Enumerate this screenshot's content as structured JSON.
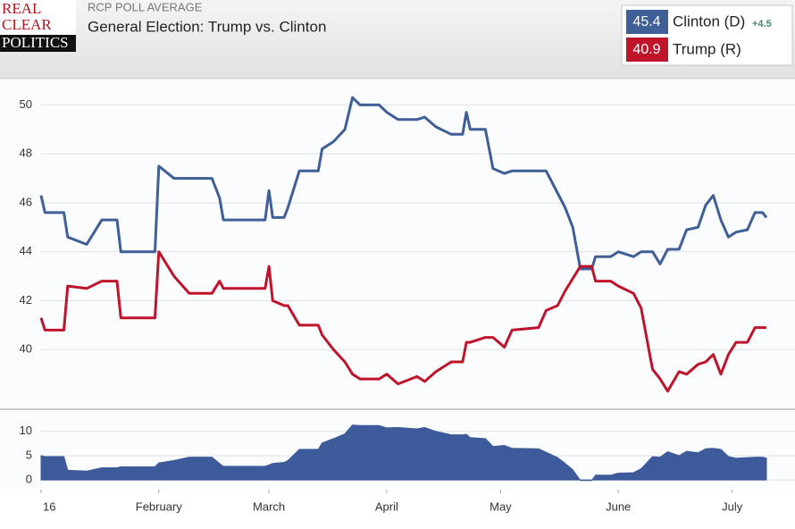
{
  "header": {
    "logo": [
      "REAL",
      "CLEAR",
      "POLITICS"
    ],
    "kicker": "RCP POLL AVERAGE",
    "title": "General Election: Trump vs. Clinton"
  },
  "chart_data": [
    {
      "type": "line",
      "grid": true,
      "x": [
        0,
        1,
        6,
        7,
        12,
        16,
        20,
        21,
        30,
        31,
        35,
        39,
        45,
        47,
        48,
        59,
        60,
        61,
        64,
        65,
        68,
        73,
        74,
        77,
        80,
        82,
        84,
        89,
        91,
        94,
        99,
        101,
        104,
        108,
        111,
        112,
        113,
        117,
        119,
        122,
        124,
        131,
        133,
        136,
        138,
        140,
        142,
        145,
        146,
        150,
        152,
        156,
        158,
        161,
        163,
        165,
        168,
        170,
        173,
        175,
        177,
        179,
        181,
        183,
        186,
        188,
        190,
        191
      ],
      "xlim": [
        0,
        191
      ],
      "ylim": [
        37.6,
        51.0
      ],
      "yticks": [
        40,
        42,
        44,
        46,
        48,
        50
      ],
      "series": [
        {
          "name": "Clinton (D)",
          "color": "#3f5f96",
          "current": 45.4,
          "lead": {
            "value": 4.5,
            "label": "+4.5"
          },
          "values": [
            46.3,
            45.6,
            45.6,
            44.6,
            44.3,
            45.3,
            45.3,
            44.0,
            44.0,
            47.5,
            47.0,
            47.0,
            47.0,
            46.2,
            45.3,
            45.3,
            46.5,
            45.4,
            45.4,
            45.8,
            47.3,
            47.3,
            48.2,
            48.5,
            49.0,
            50.3,
            50.0,
            50.0,
            49.7,
            49.4,
            49.4,
            49.5,
            49.1,
            48.8,
            48.8,
            49.7,
            49.0,
            49.0,
            47.4,
            47.2,
            47.3,
            47.3,
            47.3,
            46.4,
            45.8,
            45.0,
            43.3,
            43.3,
            43.8,
            43.8,
            44.0,
            43.8,
            44.0,
            44.0,
            43.5,
            44.1,
            44.1,
            44.9,
            45.0,
            45.9,
            46.3,
            45.3,
            44.6,
            44.8,
            44.9,
            45.6,
            45.6,
            45.4
          ]
        },
        {
          "name": "Trump (R)",
          "color": "#c0142b",
          "current": 40.9,
          "values": [
            41.3,
            40.8,
            40.8,
            42.6,
            42.5,
            42.8,
            42.8,
            41.3,
            41.3,
            44.0,
            43.0,
            42.3,
            42.3,
            42.8,
            42.5,
            42.5,
            43.4,
            42.0,
            41.8,
            41.8,
            41.0,
            41.0,
            40.6,
            40.0,
            39.5,
            39.0,
            38.8,
            38.8,
            39.0,
            38.6,
            38.9,
            38.7,
            39.1,
            39.5,
            39.5,
            40.3,
            40.3,
            40.5,
            40.5,
            40.1,
            40.8,
            40.9,
            41.6,
            41.8,
            42.4,
            42.9,
            43.4,
            43.4,
            42.8,
            42.8,
            42.6,
            42.3,
            41.7,
            39.2,
            38.8,
            38.3,
            39.1,
            39.0,
            39.4,
            39.5,
            39.8,
            39.0,
            39.8,
            40.3,
            40.3,
            40.9,
            40.9,
            40.9
          ]
        }
      ]
    },
    {
      "type": "area",
      "grid": true,
      "color": "#3d5a9a",
      "x": [
        0,
        1,
        6,
        7,
        12,
        16,
        20,
        21,
        30,
        31,
        35,
        39,
        45,
        47,
        48,
        59,
        60,
        61,
        64,
        65,
        68,
        73,
        74,
        77,
        80,
        82,
        84,
        89,
        91,
        94,
        99,
        101,
        104,
        108,
        111,
        112,
        113,
        117,
        119,
        122,
        124,
        131,
        133,
        136,
        138,
        140,
        142,
        145,
        146,
        150,
        152,
        156,
        158,
        161,
        163,
        165,
        168,
        170,
        173,
        175,
        177,
        179,
        181,
        183,
        186,
        188,
        190,
        191
      ],
      "values": [
        5.0,
        4.8,
        4.8,
        2.0,
        1.8,
        2.5,
        2.5,
        2.7,
        2.7,
        3.5,
        4.0,
        4.7,
        4.7,
        3.4,
        2.8,
        2.8,
        3.1,
        3.4,
        3.6,
        4.0,
        6.3,
        6.3,
        7.6,
        8.5,
        9.5,
        11.3,
        11.2,
        11.2,
        10.7,
        10.8,
        10.5,
        10.8,
        10.0,
        9.3,
        9.3,
        9.4,
        8.7,
        8.5,
        6.9,
        7.1,
        6.5,
        6.4,
        5.7,
        4.6,
        3.4,
        2.1,
        -0.1,
        -0.1,
        1.0,
        1.0,
        1.4,
        1.5,
        2.3,
        4.8,
        4.7,
        5.8,
        5.0,
        5.9,
        5.6,
        6.4,
        6.5,
        6.3,
        4.8,
        4.5,
        4.6,
        4.7,
        4.7,
        4.5
      ],
      "xlim": [
        0,
        191
      ],
      "ylim": [
        -2,
        14
      ],
      "yticks": [
        0,
        5,
        10
      ],
      "xticks": [
        {
          "value": 0,
          "label": "16"
        },
        {
          "value": 31,
          "label": "February"
        },
        {
          "value": 60,
          "label": "March"
        },
        {
          "value": 91,
          "label": "April"
        },
        {
          "value": 121,
          "label": "May"
        },
        {
          "value": 152,
          "label": "June"
        },
        {
          "value": 182,
          "label": "July"
        }
      ]
    }
  ]
}
